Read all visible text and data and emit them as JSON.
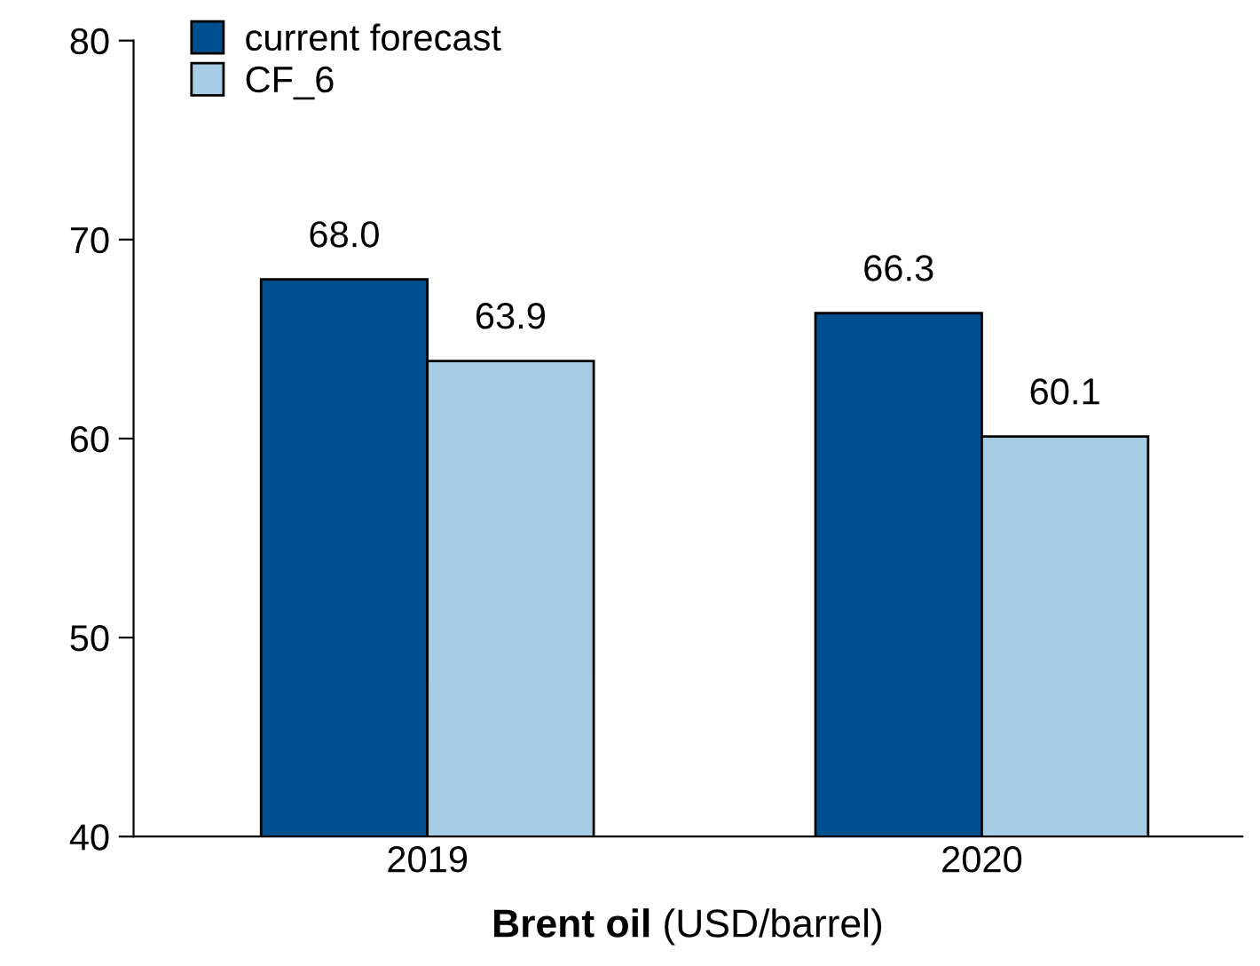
{
  "chart_data": {
    "type": "bar",
    "xlabel": "Brent oil (USD/barrel)",
    "categories": [
      "2019",
      "2020"
    ],
    "series": [
      {
        "name": "current forecast",
        "color": "#00508f",
        "values": [
          68.0,
          66.3
        ],
        "value_labels": [
          "68.0",
          "66.3"
        ]
      },
      {
        "name": "CF_6",
        "color": "#a6cbe4",
        "values": [
          63.9,
          60.1
        ],
        "value_labels": [
          "63.9",
          "60.1"
        ]
      }
    ],
    "ylim": [
      40,
      80
    ],
    "yticks": [
      40,
      50,
      60,
      70,
      80
    ],
    "grid": false,
    "legend": "top left"
  }
}
